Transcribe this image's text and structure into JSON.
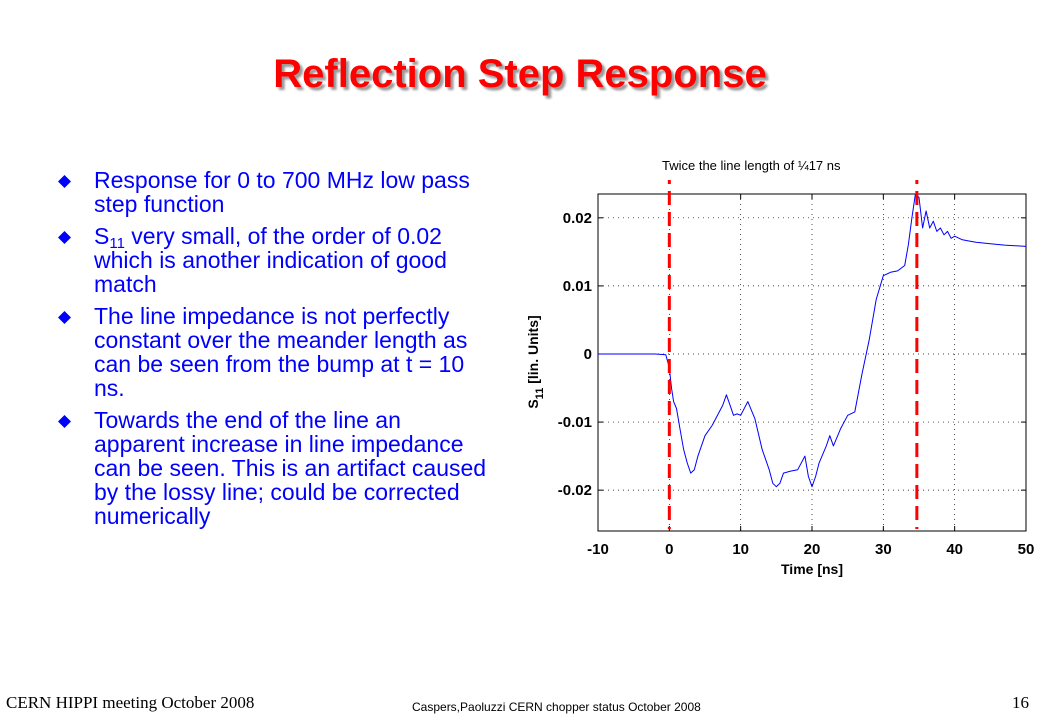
{
  "slide": {
    "title": "Reflection Step Response",
    "bullets": [
      {
        "text": "Response for 0 to 700 MHz low pass step function"
      },
      {
        "pre": "S",
        "sub": "11",
        "post": " very small, of the order of 0.02 which is another indication of good match"
      },
      {
        "text": "The line impedance is not perfectly constant over the meander length as can be seen from the bump at t = 10 ns."
      },
      {
        "text": "Towards the end of the line an apparent increase in line impedance can be seen. This is an artifact caused by the lossy line; could be corrected numerically"
      }
    ],
    "bullet_icon": "diamond-bullet-icon",
    "bullet_color": "#0000ff",
    "title_color": "#ff0000",
    "annotation": "Twice the line length of ¼17 ns",
    "footer": {
      "left": "CERN HIPPI meeting October 2008",
      "center": "Caspers,Paoluzzi CERN chopper status October 2008",
      "page_number": "16"
    }
  },
  "chart_data": {
    "type": "line",
    "xlabel": "Time [ns]",
    "ylabel_main": "S",
    "ylabel_sub": "11",
    "ylabel_post": " [lin. Units]",
    "xlim": [
      -10,
      50
    ],
    "ylim": [
      -0.026,
      0.0235
    ],
    "xticks": [
      -10,
      0,
      10,
      20,
      30,
      40,
      50
    ],
    "xtick_labels": [
      "-10",
      "0",
      "10",
      "20",
      "30",
      "40",
      "50"
    ],
    "yticks": [
      -0.02,
      -0.01,
      0,
      0.01,
      0.02
    ],
    "ytick_labels": [
      "-0.02",
      "-0.01",
      "0",
      "0.01",
      "0.02"
    ],
    "grid": true,
    "grid_style": "dotted",
    "line_color": "#0000ff",
    "marker_color": "#ff0000",
    "markers_x": [
      0,
      34.7
    ],
    "series": [
      {
        "x": [
          -10,
          -5,
          -2,
          -0.5,
          0,
          0.3,
          0.6,
          1,
          1.5,
          2,
          2.5,
          3,
          3.5,
          4,
          5,
          6,
          7,
          7.5,
          8,
          8.5,
          9,
          9.5,
          10,
          11,
          12,
          13,
          14,
          14.5,
          15,
          15.5,
          16,
          17,
          18,
          19,
          19.5,
          20,
          20.5,
          21,
          22,
          22.5,
          23,
          24,
          25,
          26,
          27,
          28,
          29,
          30,
          31,
          32,
          33,
          33.5,
          34,
          34.5,
          35,
          35.5,
          36,
          36.5,
          37,
          37.5,
          38,
          38.5,
          39,
          39.5,
          40,
          41,
          42,
          43,
          45,
          47,
          50
        ],
        "y": [
          0,
          0,
          0,
          -0.0001,
          -0.002,
          -0.005,
          -0.007,
          -0.008,
          -0.011,
          -0.014,
          -0.016,
          -0.0175,
          -0.017,
          -0.015,
          -0.012,
          -0.0105,
          -0.0085,
          -0.0075,
          -0.006,
          -0.0075,
          -0.009,
          -0.0088,
          -0.009,
          -0.007,
          -0.0095,
          -0.014,
          -0.017,
          -0.019,
          -0.0195,
          -0.019,
          -0.0175,
          -0.0172,
          -0.017,
          -0.015,
          -0.018,
          -0.0195,
          -0.018,
          -0.016,
          -0.0135,
          -0.012,
          -0.0135,
          -0.011,
          -0.009,
          -0.0085,
          -0.003,
          0.002,
          0.008,
          0.0115,
          0.012,
          0.0122,
          0.013,
          0.016,
          0.02,
          0.0235,
          0.023,
          0.0185,
          0.021,
          0.0185,
          0.0195,
          0.018,
          0.0185,
          0.0175,
          0.018,
          0.017,
          0.0173,
          0.0168,
          0.0166,
          0.0164,
          0.0162,
          0.016,
          0.0158
        ]
      }
    ]
  }
}
